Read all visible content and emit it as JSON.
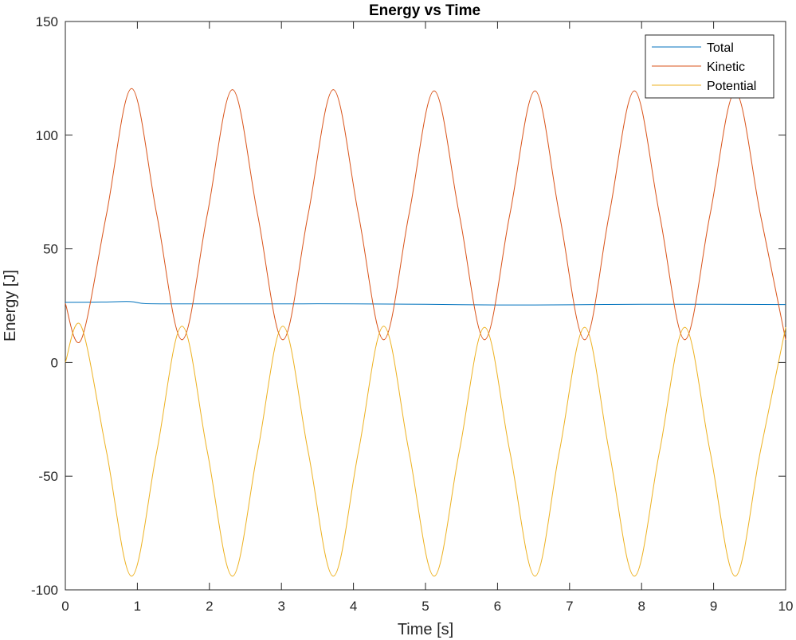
{
  "chart_data": {
    "type": "line",
    "title": "Energy vs Time",
    "xlabel": "Time [s]",
    "ylabel": "Energy [J]",
    "xlim": [
      0,
      10
    ],
    "ylim": [
      -100,
      150
    ],
    "xticks": [
      0,
      1,
      2,
      3,
      4,
      5,
      6,
      7,
      8,
      9,
      10
    ],
    "yticks": [
      -100,
      -50,
      0,
      50,
      100,
      150
    ],
    "xtick_labels": [
      "0",
      "1",
      "2",
      "3",
      "4",
      "5",
      "6",
      "7",
      "8",
      "9",
      "10"
    ],
    "ytick_labels": [
      "-100",
      "-50",
      "0",
      "50",
      "100",
      "150"
    ],
    "grid": false,
    "legend_location": "top-right",
    "series": [
      {
        "name": "Total",
        "color": "#0072BD",
        "x": [
          0,
          0.5,
          0.9,
          1.1,
          1.5,
          2,
          3,
          4,
          5,
          6,
          7,
          8,
          9,
          10
        ],
        "y": [
          26.5,
          26.6,
          26.8,
          25.9,
          25.8,
          25.8,
          25.8,
          25.8,
          25.6,
          25.3,
          25.4,
          25.6,
          25.6,
          25.5
        ]
      },
      {
        "name": "Kinetic",
        "color": "#D95319",
        "x": [
          0,
          0.22,
          0.57,
          0.92,
          1.27,
          1.62,
          1.97,
          2.32,
          2.67,
          3.02,
          3.37,
          3.72,
          4.07,
          4.42,
          4.77,
          5.12,
          5.47,
          5.82,
          6.17,
          6.52,
          6.86,
          7.21,
          7.55,
          7.9,
          8.25,
          8.6,
          8.95,
          9.3,
          9.65,
          10
        ],
        "y": [
          26,
          10,
          65,
          120.5,
          65,
          10,
          65,
          120,
          65,
          10,
          65,
          120,
          65,
          10,
          65,
          119.5,
          65,
          10,
          65,
          119.5,
          65,
          10,
          65,
          119.5,
          65,
          10,
          65,
          119,
          65,
          10
        ]
      },
      {
        "name": "Potential",
        "color": "#EDB120",
        "x": [
          0,
          0.22,
          0.57,
          0.92,
          1.27,
          1.62,
          1.97,
          2.32,
          2.67,
          3.02,
          3.37,
          3.72,
          4.07,
          4.42,
          4.77,
          5.12,
          5.47,
          5.82,
          6.17,
          6.52,
          6.86,
          7.21,
          7.55,
          7.9,
          8.25,
          8.6,
          8.95,
          9.3,
          9.65,
          10
        ],
        "y": [
          0,
          16,
          -39,
          -94,
          -39,
          16,
          -39,
          -94,
          -39,
          16,
          -39,
          -94,
          -39,
          16,
          -39,
          -94,
          -39,
          15.5,
          -39,
          -94,
          -39,
          15.5,
          -39,
          -94,
          -39,
          15.5,
          -39,
          -94,
          -39,
          15.5
        ]
      }
    ]
  }
}
